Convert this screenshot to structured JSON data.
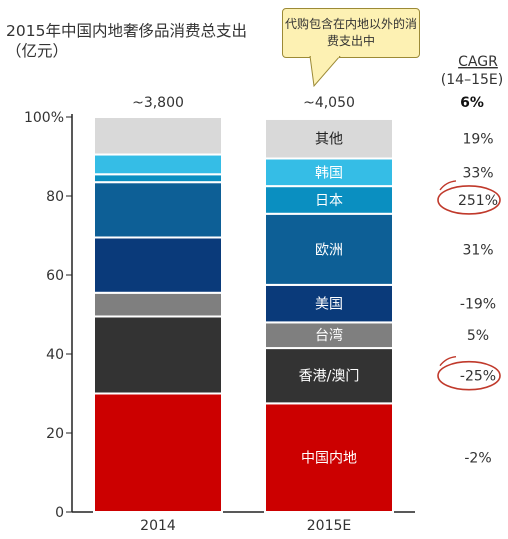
{
  "title": "2015年中国内地奢侈品消费总支出（亿元）",
  "callout": "代购包含在内地以外的消费支出中",
  "cagr_header": [
    "CAGR",
    "(14–15E)"
  ],
  "chart_data": {
    "type": "bar",
    "stacked": true,
    "normalized": true,
    "categories": [
      "2014",
      "2015E"
    ],
    "totals": [
      "~3,800",
      "~4,050"
    ],
    "ylim": [
      0,
      100
    ],
    "yticks": [
      "0",
      "20",
      "40",
      "60",
      "80",
      "100%"
    ],
    "series": [
      {
        "name": "中国内地",
        "color": "#cc0000",
        "values": [
          30,
          27.5
        ],
        "cagr": "-2%",
        "circled": false
      },
      {
        "name": "香港/澳门",
        "color": "#333333",
        "values": [
          19.5,
          14
        ],
        "cagr": "-25%",
        "circled": true
      },
      {
        "name": "台湾",
        "color": "#7f7f7f",
        "values": [
          6,
          6.5
        ],
        "cagr": "5%",
        "circled": false
      },
      {
        "name": "美国",
        "color": "#0a3a7a",
        "values": [
          14,
          9.5
        ],
        "cagr": "-19%",
        "circled": false
      },
      {
        "name": "欧洲",
        "color": "#0d5f96",
        "values": [
          14,
          18
        ],
        "cagr": "31%",
        "circled": false
      },
      {
        "name": "日本",
        "color": "#0a8fc1",
        "values": [
          2,
          7
        ],
        "cagr": "251%",
        "circled": true
      },
      {
        "name": "韩国",
        "color": "#35bde6",
        "values": [
          5,
          7
        ],
        "cagr": "33%",
        "circled": false
      },
      {
        "name": "其他",
        "color": "#d9d9d9",
        "values": [
          9.5,
          10
        ],
        "cagr": "19%",
        "circled": false
      }
    ],
    "total_cagr": "6%"
  }
}
